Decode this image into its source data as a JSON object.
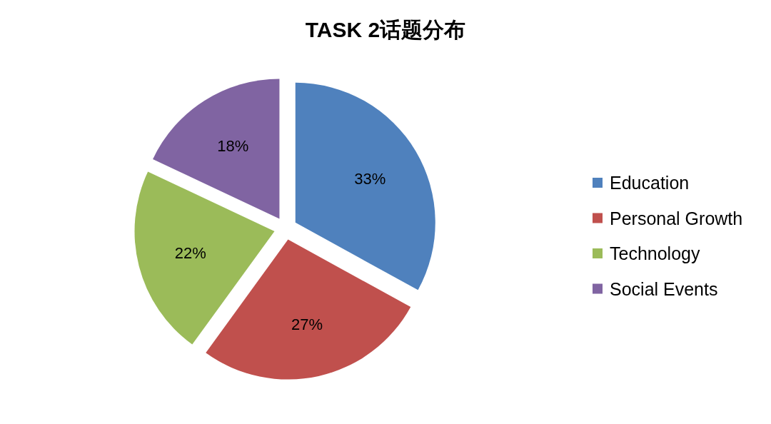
{
  "chart_data": {
    "type": "pie",
    "title": "TASK 2话题分布",
    "categories": [
      "Education",
      "Personal Growth",
      "Technology",
      "Social Events"
    ],
    "values": [
      33,
      27,
      22,
      18
    ],
    "value_labels": [
      "33%",
      "27%",
      "22%",
      "18%"
    ],
    "colors": [
      "#4f81bd",
      "#c0504d",
      "#9bbb59",
      "#8064a2"
    ],
    "legend": "right"
  }
}
